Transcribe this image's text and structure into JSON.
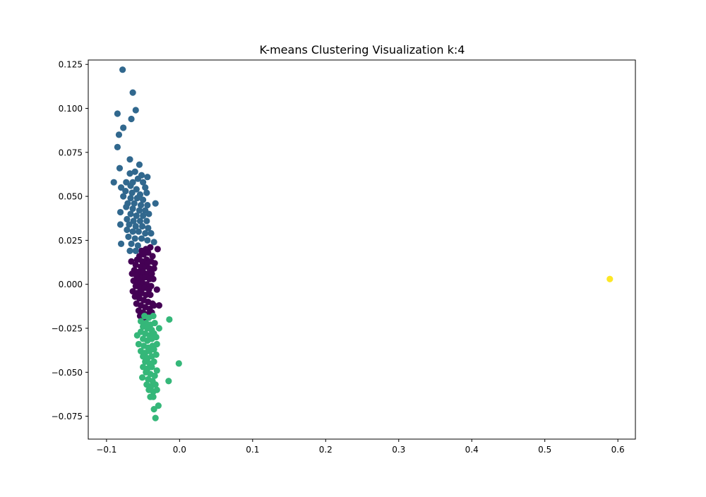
{
  "chart_data": {
    "type": "scatter",
    "title": "K-means Clustering Visualization k:4",
    "xlabel": "",
    "ylabel": "",
    "xlim": [
      -0.125,
      0.624
    ],
    "ylim": [
      -0.088,
      0.1275
    ],
    "xticks": [
      -0.1,
      0.0,
      0.1,
      0.2,
      0.3,
      0.4,
      0.5,
      0.6
    ],
    "xtick_labels": [
      "−0.1",
      "0.0",
      "0.1",
      "0.2",
      "0.3",
      "0.4",
      "0.5",
      "0.6"
    ],
    "yticks": [
      -0.075,
      -0.05,
      -0.025,
      0.0,
      0.025,
      0.05,
      0.075,
      0.1,
      0.125
    ],
    "ytick_labels": [
      "−0.075",
      "−0.050",
      "−0.025",
      "0.000",
      "0.025",
      "0.050",
      "0.075",
      "0.100",
      "0.125"
    ],
    "grid": false,
    "legend": "none",
    "cluster_colors": [
      "#440154",
      "#31688e",
      "#35b779",
      "#fde725"
    ],
    "series": [
      {
        "cluster": 0,
        "color": "#440154",
        "points": [
          [
            -0.052,
            0.019
          ],
          [
            -0.046,
            0.02
          ],
          [
            -0.04,
            0.021
          ],
          [
            -0.03,
            0.02
          ],
          [
            -0.055,
            0.016
          ],
          [
            -0.049,
            0.017
          ],
          [
            -0.043,
            0.018
          ],
          [
            -0.037,
            0.016
          ],
          [
            -0.058,
            0.014
          ],
          [
            -0.051,
            0.013
          ],
          [
            -0.045,
            0.014
          ],
          [
            -0.039,
            0.013
          ],
          [
            -0.034,
            0.012
          ],
          [
            -0.066,
            0.013
          ],
          [
            -0.06,
            0.011
          ],
          [
            -0.053,
            0.01
          ],
          [
            -0.047,
            0.01
          ],
          [
            -0.041,
            0.009
          ],
          [
            -0.035,
            0.009
          ],
          [
            -0.062,
            0.008
          ],
          [
            -0.056,
            0.007
          ],
          [
            -0.05,
            0.007
          ],
          [
            -0.044,
            0.006
          ],
          [
            -0.038,
            0.006
          ],
          [
            -0.065,
            0.006
          ],
          [
            -0.059,
            0.005
          ],
          [
            -0.053,
            0.004
          ],
          [
            -0.047,
            0.004
          ],
          [
            -0.041,
            0.003
          ],
          [
            -0.036,
            0.003
          ],
          [
            -0.063,
            0.002
          ],
          [
            -0.057,
            0.001
          ],
          [
            -0.051,
            0.001
          ],
          [
            -0.045,
            0.0
          ],
          [
            -0.039,
            -0.001
          ],
          [
            -0.06,
            -0.001
          ],
          [
            -0.054,
            -0.002
          ],
          [
            -0.048,
            -0.002
          ],
          [
            -0.042,
            -0.003
          ],
          [
            -0.031,
            -0.003
          ],
          [
            -0.064,
            -0.004
          ],
          [
            -0.058,
            -0.005
          ],
          [
            -0.052,
            -0.005
          ],
          [
            -0.046,
            -0.006
          ],
          [
            -0.04,
            -0.006
          ],
          [
            -0.061,
            -0.007
          ],
          [
            -0.055,
            -0.008
          ],
          [
            -0.049,
            -0.009
          ],
          [
            -0.043,
            -0.01
          ],
          [
            -0.037,
            -0.011
          ],
          [
            -0.059,
            -0.011
          ],
          [
            -0.053,
            -0.012
          ],
          [
            -0.047,
            -0.013
          ],
          [
            -0.041,
            -0.014
          ],
          [
            -0.035,
            -0.012
          ],
          [
            -0.056,
            -0.015
          ],
          [
            -0.05,
            -0.016
          ],
          [
            -0.044,
            -0.017
          ],
          [
            -0.038,
            -0.016
          ],
          [
            -0.028,
            -0.012
          ],
          [
            -0.054,
            -0.018
          ],
          [
            -0.048,
            -0.019
          ],
          [
            -0.042,
            -0.017
          ],
          [
            -0.057,
            0.003
          ],
          [
            -0.044,
            0.012
          ]
        ]
      },
      {
        "cluster": 1,
        "color": "#31688e",
        "points": [
          [
            -0.078,
            0.122
          ],
          [
            -0.064,
            0.109
          ],
          [
            -0.06,
            0.099
          ],
          [
            -0.085,
            0.097
          ],
          [
            -0.066,
            0.094
          ],
          [
            -0.077,
            0.089
          ],
          [
            -0.083,
            0.085
          ],
          [
            -0.085,
            0.078
          ],
          [
            -0.068,
            0.071
          ],
          [
            -0.055,
            0.068
          ],
          [
            -0.082,
            0.066
          ],
          [
            -0.061,
            0.064
          ],
          [
            -0.068,
            0.063
          ],
          [
            -0.052,
            0.062
          ],
          [
            -0.044,
            0.061
          ],
          [
            -0.057,
            0.06
          ],
          [
            -0.09,
            0.058
          ],
          [
            -0.073,
            0.058
          ],
          [
            -0.064,
            0.058
          ],
          [
            -0.05,
            0.058
          ],
          [
            -0.067,
            0.056
          ],
          [
            -0.08,
            0.055
          ],
          [
            -0.059,
            0.054
          ],
          [
            -0.047,
            0.055
          ],
          [
            -0.074,
            0.053
          ],
          [
            -0.065,
            0.052
          ],
          [
            -0.054,
            0.051
          ],
          [
            -0.045,
            0.052
          ],
          [
            -0.077,
            0.05
          ],
          [
            -0.067,
            0.049
          ],
          [
            -0.058,
            0.049
          ],
          [
            -0.05,
            0.048
          ],
          [
            -0.071,
            0.046
          ],
          [
            -0.062,
            0.046
          ],
          [
            -0.053,
            0.045
          ],
          [
            -0.044,
            0.045
          ],
          [
            -0.033,
            0.046
          ],
          [
            -0.073,
            0.044
          ],
          [
            -0.064,
            0.043
          ],
          [
            -0.055,
            0.042
          ],
          [
            -0.047,
            0.042
          ],
          [
            -0.067,
            0.04
          ],
          [
            -0.059,
            0.039
          ],
          [
            -0.05,
            0.039
          ],
          [
            -0.042,
            0.04
          ],
          [
            -0.081,
            0.041
          ],
          [
            -0.072,
            0.037
          ],
          [
            -0.063,
            0.036
          ],
          [
            -0.054,
            0.036
          ],
          [
            -0.045,
            0.036
          ],
          [
            -0.069,
            0.034
          ],
          [
            -0.06,
            0.033
          ],
          [
            -0.051,
            0.033
          ],
          [
            -0.043,
            0.032
          ],
          [
            -0.081,
            0.034
          ],
          [
            -0.072,
            0.031
          ],
          [
            -0.064,
            0.03
          ],
          [
            -0.056,
            0.03
          ],
          [
            -0.047,
            0.029
          ],
          [
            -0.039,
            0.029
          ],
          [
            -0.07,
            0.027
          ],
          [
            -0.061,
            0.026
          ],
          [
            -0.052,
            0.026
          ],
          [
            -0.044,
            0.025
          ],
          [
            -0.08,
            0.023
          ],
          [
            -0.066,
            0.023
          ],
          [
            -0.057,
            0.022
          ],
          [
            -0.035,
            0.024
          ],
          [
            -0.068,
            0.019
          ],
          [
            -0.06,
            0.019
          ]
        ]
      },
      {
        "cluster": 2,
        "color": "#35b779",
        "points": [
          [
            -0.048,
            -0.018
          ],
          [
            -0.042,
            -0.019
          ],
          [
            -0.036,
            -0.018
          ],
          [
            -0.014,
            -0.02
          ],
          [
            -0.053,
            -0.021
          ],
          [
            -0.046,
            -0.022
          ],
          [
            -0.04,
            -0.023
          ],
          [
            -0.034,
            -0.022
          ],
          [
            -0.05,
            -0.024
          ],
          [
            -0.044,
            -0.025
          ],
          [
            -0.038,
            -0.026
          ],
          [
            -0.028,
            -0.025
          ],
          [
            -0.053,
            -0.027
          ],
          [
            -0.047,
            -0.028
          ],
          [
            -0.041,
            -0.029
          ],
          [
            -0.035,
            -0.028
          ],
          [
            -0.058,
            -0.029
          ],
          [
            -0.05,
            -0.031
          ],
          [
            -0.044,
            -0.032
          ],
          [
            -0.038,
            -0.031
          ],
          [
            -0.032,
            -0.03
          ],
          [
            -0.056,
            -0.034
          ],
          [
            -0.049,
            -0.035
          ],
          [
            -0.043,
            -0.036
          ],
          [
            -0.037,
            -0.035
          ],
          [
            -0.031,
            -0.034
          ],
          [
            -0.053,
            -0.038
          ],
          [
            -0.047,
            -0.039
          ],
          [
            -0.041,
            -0.038
          ],
          [
            -0.035,
            -0.037
          ],
          [
            -0.05,
            -0.041
          ],
          [
            -0.044,
            -0.042
          ],
          [
            -0.038,
            -0.041
          ],
          [
            -0.032,
            -0.04
          ],
          [
            -0.047,
            -0.044
          ],
          [
            -0.041,
            -0.045
          ],
          [
            -0.035,
            -0.044
          ],
          [
            -0.001,
            -0.045
          ],
          [
            -0.05,
            -0.047
          ],
          [
            -0.044,
            -0.048
          ],
          [
            -0.038,
            -0.047
          ],
          [
            -0.031,
            -0.049
          ],
          [
            -0.046,
            -0.05
          ],
          [
            -0.04,
            -0.051
          ],
          [
            -0.034,
            -0.052
          ],
          [
            -0.051,
            -0.053
          ],
          [
            -0.043,
            -0.054
          ],
          [
            -0.037,
            -0.055
          ],
          [
            -0.015,
            -0.055
          ],
          [
            -0.045,
            -0.057
          ],
          [
            -0.039,
            -0.058
          ],
          [
            -0.033,
            -0.057
          ],
          [
            -0.042,
            -0.06
          ],
          [
            -0.036,
            -0.061
          ],
          [
            -0.031,
            -0.06
          ],
          [
            -0.04,
            -0.064
          ],
          [
            -0.036,
            -0.064
          ],
          [
            -0.029,
            -0.069
          ],
          [
            -0.035,
            -0.071
          ],
          [
            -0.033,
            -0.076
          ]
        ]
      },
      {
        "cluster": 3,
        "color": "#fde725",
        "points": [
          [
            0.589,
            0.003
          ]
        ]
      }
    ]
  }
}
